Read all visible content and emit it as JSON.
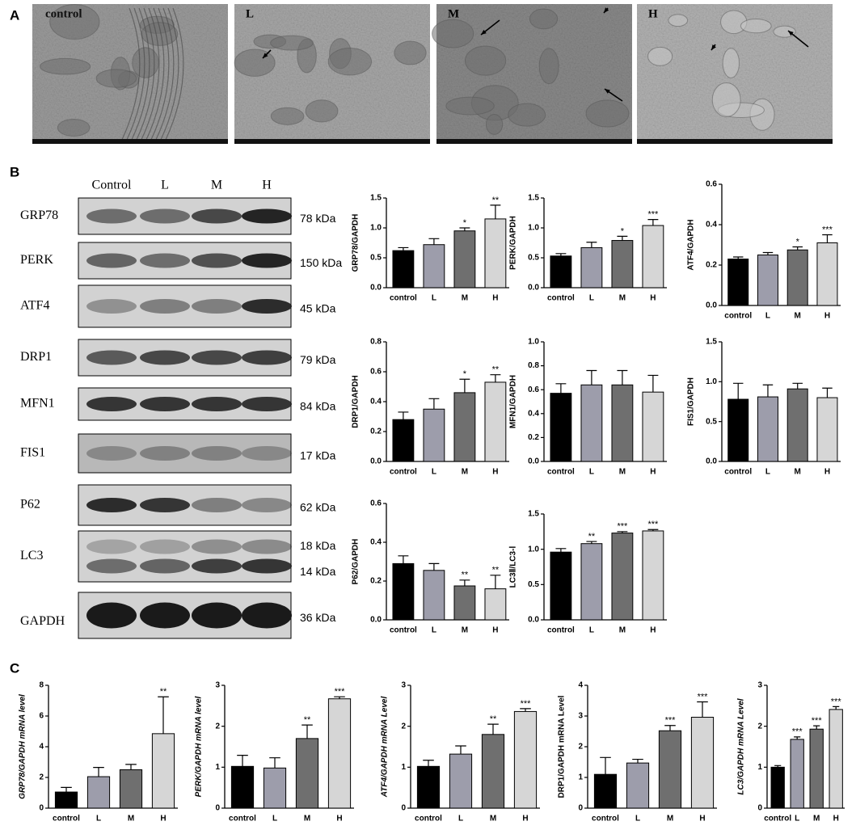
{
  "panel_labels": [
    "A",
    "B",
    "C"
  ],
  "micrographs": {
    "labels": [
      "control",
      "L",
      "M",
      "H"
    ]
  },
  "blots": {
    "columns": [
      "Control",
      "L",
      "M",
      "H"
    ],
    "rows": [
      {
        "name": "GRP78",
        "sizes": [
          "78 kDa"
        ]
      },
      {
        "name": "PERK",
        "sizes": [
          "150 kDa"
        ]
      },
      {
        "name": "ATF4",
        "sizes": [
          "45 kDa"
        ]
      },
      {
        "name": "DRP1",
        "sizes": [
          "79 kDa"
        ]
      },
      {
        "name": "MFN1",
        "sizes": [
          "84 kDa"
        ]
      },
      {
        "name": "FIS1",
        "sizes": [
          "17 kDa"
        ]
      },
      {
        "name": "P62",
        "sizes": [
          "62 kDa"
        ]
      },
      {
        "name": "LC3",
        "sizes": [
          "18 kDa",
          "14 kDa"
        ]
      },
      {
        "name": "GAPDH",
        "sizes": [
          "36 kDa"
        ]
      }
    ]
  },
  "chart_data": [
    {
      "type": "bar",
      "ylabel": "GRP78/GAPDH",
      "categories": [
        "control",
        "L",
        "M",
        "H"
      ],
      "values": [
        0.62,
        0.72,
        0.95,
        1.15
      ],
      "errors": [
        0.05,
        0.1,
        0.05,
        0.23
      ],
      "annotations": [
        null,
        null,
        "*",
        "**"
      ],
      "colors": [
        "#000000",
        "#9d9dab",
        "#6f6f6f",
        "#d6d6d6"
      ],
      "ylim": [
        0,
        1.5
      ],
      "yticks": [
        {
          "value": 0,
          "label": "0.0"
        },
        0.5,
        {
          "value": 1,
          "label": "1.0"
        },
        1.5
      ]
    },
    {
      "type": "bar",
      "ylabel": "PERK/GAPDH",
      "categories": [
        "control",
        "L",
        "M",
        "H"
      ],
      "values": [
        0.53,
        0.67,
        0.79,
        1.04
      ],
      "errors": [
        0.04,
        0.09,
        0.07,
        0.1
      ],
      "annotations": [
        null,
        null,
        "*",
        "***"
      ],
      "colors": [
        "#000000",
        "#9d9dab",
        "#6f6f6f",
        "#d6d6d6"
      ],
      "ylim": [
        0,
        1.5
      ],
      "yticks": [
        {
          "value": 0,
          "label": "0.0"
        },
        0.5,
        {
          "value": 1,
          "label": "1.0"
        },
        1.5
      ]
    },
    {
      "type": "bar",
      "ylabel": "ATF4/GAPDH",
      "categories": [
        "control",
        "L",
        "M",
        "H"
      ],
      "values": [
        0.23,
        0.25,
        0.275,
        0.31
      ],
      "errors": [
        0.01,
        0.012,
        0.015,
        0.04
      ],
      "annotations": [
        null,
        null,
        "*",
        "***"
      ],
      "colors": [
        "#000000",
        "#9d9dab",
        "#6f6f6f",
        "#d6d6d6"
      ],
      "ylim": [
        0,
        0.6
      ],
      "yticks": [
        {
          "value": 0,
          "label": "0.0"
        },
        0.2,
        0.4,
        0.6
      ]
    },
    {
      "type": "bar",
      "ylabel": "DRP1/GAPDH",
      "categories": [
        "control",
        "L",
        "M",
        "H"
      ],
      "values": [
        0.28,
        0.35,
        0.46,
        0.53
      ],
      "errors": [
        0.05,
        0.07,
        0.09,
        0.05
      ],
      "annotations": [
        null,
        null,
        "*",
        "**"
      ],
      "colors": [
        "#000000",
        "#9d9dab",
        "#6f6f6f",
        "#d6d6d6"
      ],
      "ylim": [
        0,
        0.8
      ],
      "yticks": [
        {
          "value": 0,
          "label": "0.0"
        },
        0.2,
        0.4,
        0.6,
        0.8
      ]
    },
    {
      "type": "bar",
      "ylabel": "MFN1/GAPDH",
      "categories": [
        "control",
        "L",
        "M",
        "H"
      ],
      "values": [
        0.57,
        0.64,
        0.64,
        0.58
      ],
      "errors": [
        0.08,
        0.12,
        0.12,
        0.14
      ],
      "annotations": [
        null,
        null,
        null,
        null
      ],
      "colors": [
        "#000000",
        "#9d9dab",
        "#6f6f6f",
        "#d6d6d6"
      ],
      "ylim": [
        0,
        1
      ],
      "yticks": [
        {
          "value": 0,
          "label": "0.0"
        },
        0.2,
        0.4,
        0.6,
        0.8,
        {
          "value": 1,
          "label": "1.0"
        }
      ]
    },
    {
      "type": "bar",
      "ylabel": "FIS1/GAPDH",
      "categories": [
        "control",
        "L",
        "M",
        "H"
      ],
      "values": [
        0.78,
        0.81,
        0.91,
        0.8
      ],
      "errors": [
        0.2,
        0.15,
        0.07,
        0.12
      ],
      "annotations": [
        null,
        null,
        null,
        null
      ],
      "colors": [
        "#000000",
        "#9d9dab",
        "#6f6f6f",
        "#d6d6d6"
      ],
      "ylim": [
        0,
        1.5
      ],
      "yticks": [
        {
          "value": 0,
          "label": "0.0"
        },
        0.5,
        {
          "value": 1,
          "label": "1.0"
        },
        1.5
      ]
    },
    {
      "type": "bar",
      "ylabel": "P62/GAPDH",
      "categories": [
        "control",
        "L",
        "M",
        "H"
      ],
      "values": [
        0.29,
        0.255,
        0.175,
        0.16
      ],
      "errors": [
        0.04,
        0.035,
        0.03,
        0.07
      ],
      "annotations": [
        null,
        null,
        "**",
        "**"
      ],
      "colors": [
        "#000000",
        "#9d9dab",
        "#6f6f6f",
        "#d6d6d6"
      ],
      "ylim": [
        0,
        0.6
      ],
      "yticks": [
        {
          "value": 0,
          "label": "0.0"
        },
        0.2,
        0.4,
        0.6
      ]
    },
    {
      "type": "bar",
      "ylabel": "LC3Ⅱ/LC3-Ⅰ",
      "categories": [
        "control",
        "L",
        "M",
        "H"
      ],
      "values": [
        0.96,
        1.08,
        1.23,
        1.26
      ],
      "errors": [
        0.05,
        0.03,
        0.02,
        0.02
      ],
      "annotations": [
        null,
        "**",
        "***",
        "***"
      ],
      "colors": [
        "#000000",
        "#9d9dab",
        "#6f6f6f",
        "#d6d6d6"
      ],
      "ylim": [
        0,
        1.5
      ],
      "yticks": [
        {
          "value": 0,
          "label": "0.0"
        },
        0.5,
        {
          "value": 1,
          "label": "1.0"
        },
        1.5
      ]
    },
    {
      "type": "bar",
      "ylabel": "GRP78/GAPDH  mRNA level",
      "categories": [
        "control",
        "L",
        "M",
        "H"
      ],
      "values": [
        1.05,
        2.05,
        2.5,
        4.85
      ],
      "errors": [
        0.3,
        0.6,
        0.35,
        2.4
      ],
      "annotations": [
        null,
        null,
        null,
        "**"
      ],
      "colors": [
        "#000000",
        "#9d9dab",
        "#6f6f6f",
        "#d6d6d6"
      ],
      "ylim": [
        0,
        8
      ],
      "yticks": [
        0,
        2,
        4,
        6,
        8
      ]
    },
    {
      "type": "bar",
      "ylabel": "PERK/GAPDH  mRNA level",
      "categories": [
        "control",
        "L",
        "M",
        "H"
      ],
      "values": [
        1.02,
        0.98,
        1.7,
        2.67
      ],
      "errors": [
        0.27,
        0.25,
        0.33,
        0.05
      ],
      "annotations": [
        null,
        null,
        "**",
        "***"
      ],
      "colors": [
        "#000000",
        "#9d9dab",
        "#6f6f6f",
        "#d6d6d6"
      ],
      "ylim": [
        0,
        3
      ],
      "yticks": [
        0,
        1,
        2,
        3
      ]
    },
    {
      "type": "bar",
      "ylabel": "ATF4/GAPDH  mRNA Level",
      "categories": [
        "control",
        "L",
        "M",
        "H"
      ],
      "values": [
        1.02,
        1.32,
        1.8,
        2.36
      ],
      "errors": [
        0.15,
        0.2,
        0.25,
        0.07
      ],
      "annotations": [
        null,
        null,
        "**",
        "***"
      ],
      "colors": [
        "#000000",
        "#9d9dab",
        "#6f6f6f",
        "#d6d6d6"
      ],
      "ylim": [
        0,
        3
      ],
      "yticks": [
        0,
        1,
        2,
        3
      ]
    },
    {
      "type": "bar",
      "ylabel": "DRP1/GAPDH  mRNA Level",
      "categories": [
        "control",
        "L",
        "M",
        "H"
      ],
      "values": [
        1.1,
        1.47,
        2.52,
        2.96
      ],
      "errors": [
        0.55,
        0.12,
        0.17,
        0.5
      ],
      "annotations": [
        null,
        null,
        "***",
        "***"
      ],
      "colors": [
        "#000000",
        "#9d9dab",
        "#6f6f6f",
        "#d6d6d6"
      ],
      "ylim": [
        0,
        4
      ],
      "yticks": [
        0,
        1,
        2,
        3,
        4
      ]
    },
    {
      "type": "bar",
      "ylabel": "LC3/GAPDH  mRNA Level",
      "categories": [
        "control",
        "L",
        "M",
        "H"
      ],
      "values": [
        1.0,
        1.68,
        1.93,
        2.41
      ],
      "errors": [
        0.04,
        0.06,
        0.08,
        0.07
      ],
      "annotations": [
        null,
        "***",
        "***",
        "***"
      ],
      "colors": [
        "#000000",
        "#9d9dab",
        "#6f6f6f",
        "#d6d6d6"
      ],
      "ylim": [
        0,
        3
      ],
      "yticks": [
        0,
        1,
        2,
        3
      ]
    }
  ]
}
